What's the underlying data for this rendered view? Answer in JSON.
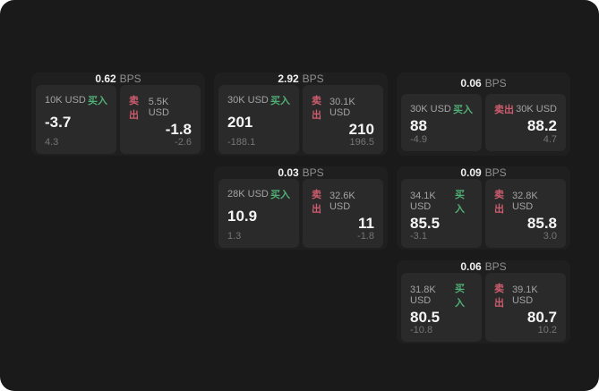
{
  "window": {
    "background": "#1a1a1a",
    "card_background": "#1f1f1f",
    "panel_background": "#2a2a2a"
  },
  "colors": {
    "buy_green": "#4fae74",
    "sell_red": "#cd5c6e",
    "text_primary": "#f5f5f5",
    "text_secondary": "#a3a3a3",
    "text_muted": "#757575"
  },
  "labels": {
    "buy": "买入",
    "sell": "卖出",
    "bps_unit": "BPS"
  },
  "cards": [
    {
      "row": 1,
      "col": 1,
      "bps": "0.62",
      "buy": {
        "amount": "10K USD",
        "price": "-3.7",
        "delta": "4.3"
      },
      "sell": {
        "amount": "5.5K USD",
        "price": "-1.8",
        "delta": "-2.6"
      }
    },
    {
      "row": 1,
      "col": 2,
      "bps": "2.92",
      "buy": {
        "amount": "30K USD",
        "price": "201",
        "delta": "-188.1"
      },
      "sell": {
        "amount": "30.1K USD",
        "price": "210",
        "delta": "196.5"
      }
    },
    {
      "row": 1,
      "col": 3,
      "bps": "0.06",
      "buy": {
        "amount": "30K USD",
        "price": "88",
        "delta": "-4.9"
      },
      "sell": {
        "amount": "30K USD",
        "price": "88.2",
        "delta": "4.7"
      }
    },
    {
      "row": 2,
      "col": 2,
      "bps": "0.03",
      "buy": {
        "amount": "28K USD",
        "price": "10.9",
        "delta": "1.3"
      },
      "sell": {
        "amount": "32.6K USD",
        "price": "11",
        "delta": "-1.8"
      }
    },
    {
      "row": 2,
      "col": 3,
      "bps": "0.09",
      "buy": {
        "amount": "34.1K USD",
        "price": "85.5",
        "delta": "-3.1"
      },
      "sell": {
        "amount": "32.8K USD",
        "price": "85.8",
        "delta": "3.0"
      }
    },
    {
      "row": 3,
      "col": 3,
      "bps": "0.06",
      "buy": {
        "amount": "31.8K USD",
        "price": "80.5",
        "delta": "-10.8"
      },
      "sell": {
        "amount": "39.1K USD",
        "price": "80.7",
        "delta": "10.2"
      }
    }
  ]
}
